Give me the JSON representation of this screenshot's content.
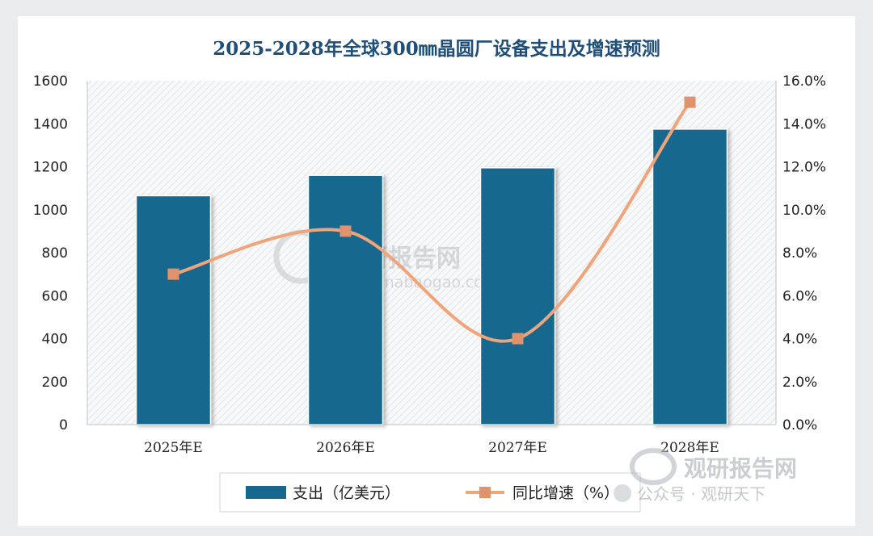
{
  "chart_data": {
    "type": "bar",
    "title": "2025-2028年全球300㎜晶圆厂设备支出及增速预测",
    "categories": [
      "2025年E",
      "2026年E",
      "2027年E",
      "2028年E"
    ],
    "series": [
      {
        "name": "支出（亿美元）",
        "type": "bar",
        "axis": "left",
        "color": "#17678f",
        "values": [
          1065,
          1160,
          1195,
          1375
        ]
      },
      {
        "name": "同比增速（%）",
        "type": "line",
        "axis": "right",
        "color": "#f0a47a",
        "marker_color": "#e0926a",
        "values": [
          7.0,
          9.0,
          4.0,
          15.0
        ]
      }
    ],
    "y_left": {
      "ylim": [
        0,
        1600
      ],
      "ticks": [
        "0",
        "200",
        "400",
        "600",
        "800",
        "1000",
        "1200",
        "1400",
        "1600"
      ]
    },
    "y_right": {
      "ylim": [
        0,
        16
      ],
      "ticks": [
        "0.0%",
        "2.0%",
        "4.0%",
        "6.0%",
        "8.0%",
        "10.0%",
        "12.0%",
        "14.0%",
        "16.0%"
      ]
    },
    "legend_position": "bottom"
  },
  "watermark": {
    "brand": "观研报告网",
    "domain": "chinabaogao.com",
    "wechat": "公众号 · 观研天下"
  }
}
